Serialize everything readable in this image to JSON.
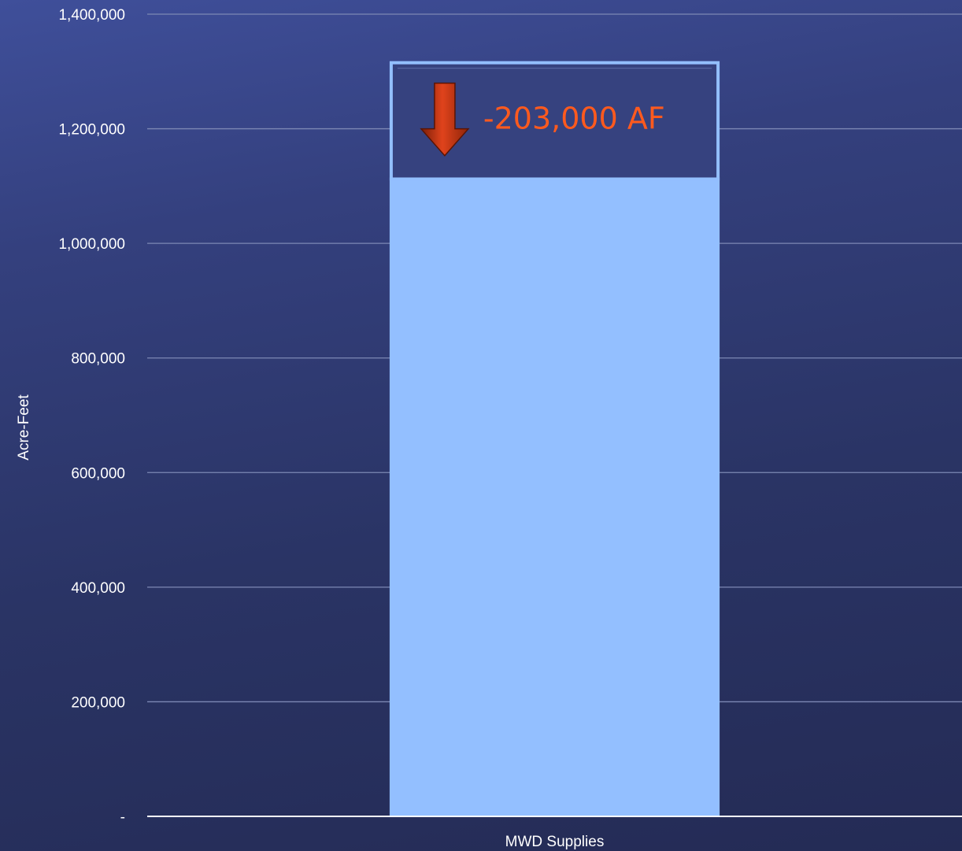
{
  "chart_data": {
    "type": "bar",
    "categories": [
      "MWD Supplies"
    ],
    "series": [
      {
        "values": [
          1115000
        ]
      }
    ],
    "reduction": {
      "from": 1318000,
      "to": 1115000,
      "label": "-203,000 AF",
      "icon": "down-arrow-icon",
      "color": "#ff5a1e"
    },
    "ylabel": "Acre-Feet",
    "xlabel": "",
    "ylim": [
      0,
      1400000
    ],
    "yticks": [
      0,
      200000,
      400000,
      600000,
      800000,
      1000000,
      1200000,
      1400000
    ],
    "ytick_labels": [
      "-",
      "200,000",
      "400,000",
      "600,000",
      "800,000",
      "1,000,000",
      "1,200,000",
      "1,400,000"
    ],
    "grid": true,
    "legend": "none",
    "colors": {
      "bar": "#93bfff",
      "reduction_border": "#93bfff",
      "reduction_fill": "#36427f",
      "gridline": "#7d88b4",
      "axis": "#ffffff"
    }
  }
}
